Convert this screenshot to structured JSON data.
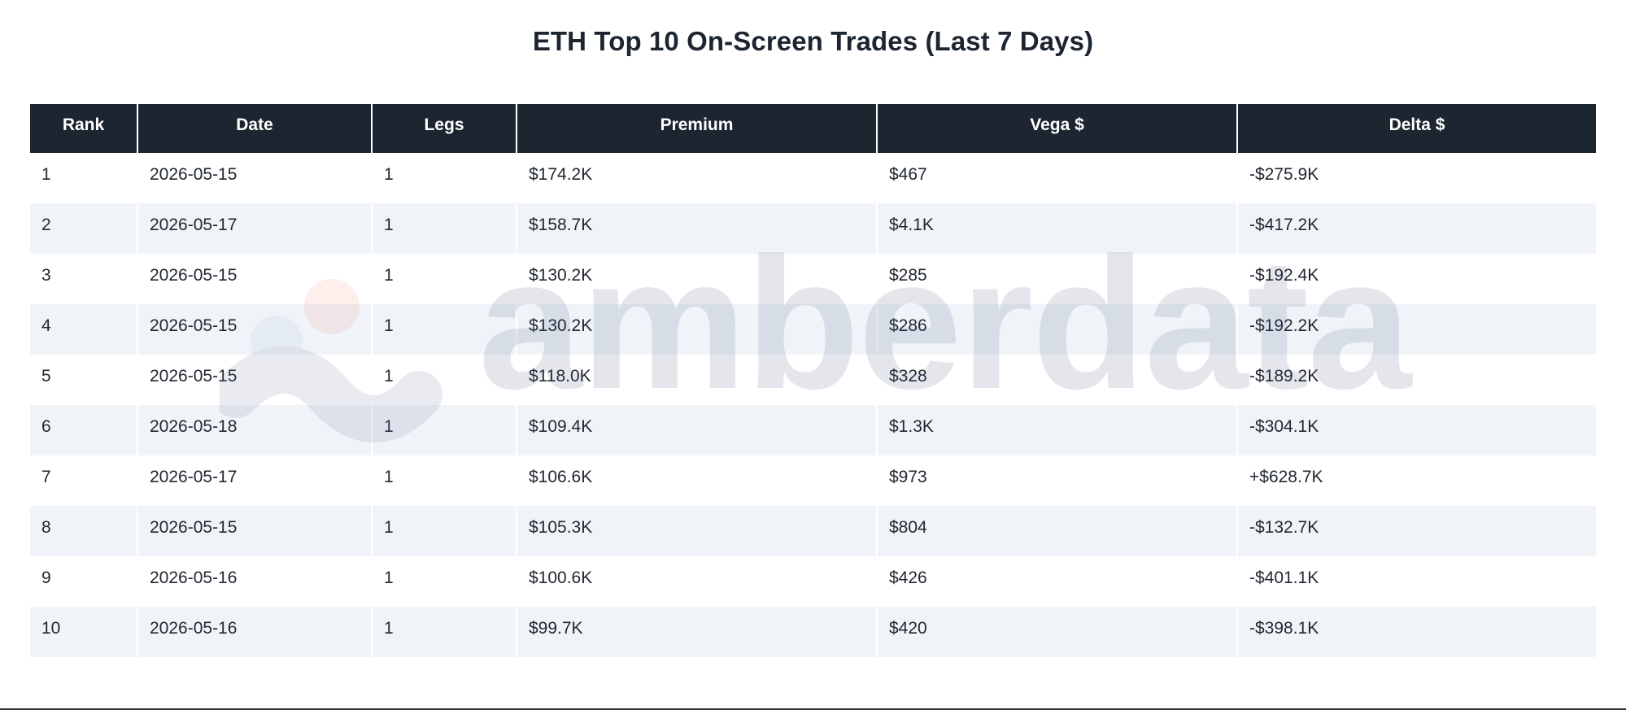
{
  "title": "ETH Top 10 On-Screen Trades (Last 7 Days)",
  "watermark": "amberdata",
  "chart_data": {
    "type": "table",
    "title": "ETH Top 10 On-Screen Trades (Last 7 Days)",
    "columns": [
      "Rank",
      "Date",
      "Legs",
      "Premium",
      "Vega $",
      "Delta $"
    ],
    "rows": [
      [
        "1",
        "2026-05-15",
        "1",
        "$174.2K",
        "$467",
        "-$275.9K"
      ],
      [
        "2",
        "2026-05-17",
        "1",
        "$158.7K",
        "$4.1K",
        "-$417.2K"
      ],
      [
        "3",
        "2026-05-15",
        "1",
        "$130.2K",
        "$285",
        "-$192.4K"
      ],
      [
        "4",
        "2026-05-15",
        "1",
        "$130.2K",
        "$286",
        "-$192.2K"
      ],
      [
        "5",
        "2026-05-15",
        "1",
        "$118.0K",
        "$328",
        "-$189.2K"
      ],
      [
        "6",
        "2026-05-18",
        "1",
        "$109.4K",
        "$1.3K",
        "-$304.1K"
      ],
      [
        "7",
        "2026-05-17",
        "1",
        "$106.6K",
        "$973",
        "+$628.7K"
      ],
      [
        "8",
        "2026-05-15",
        "1",
        "$105.3K",
        "$804",
        "-$132.7K"
      ],
      [
        "9",
        "2026-05-16",
        "1",
        "$100.6K",
        "$426",
        "-$401.1K"
      ],
      [
        "10",
        "2026-05-16",
        "1",
        "$99.7K",
        "$420",
        "-$398.1K"
      ]
    ]
  }
}
